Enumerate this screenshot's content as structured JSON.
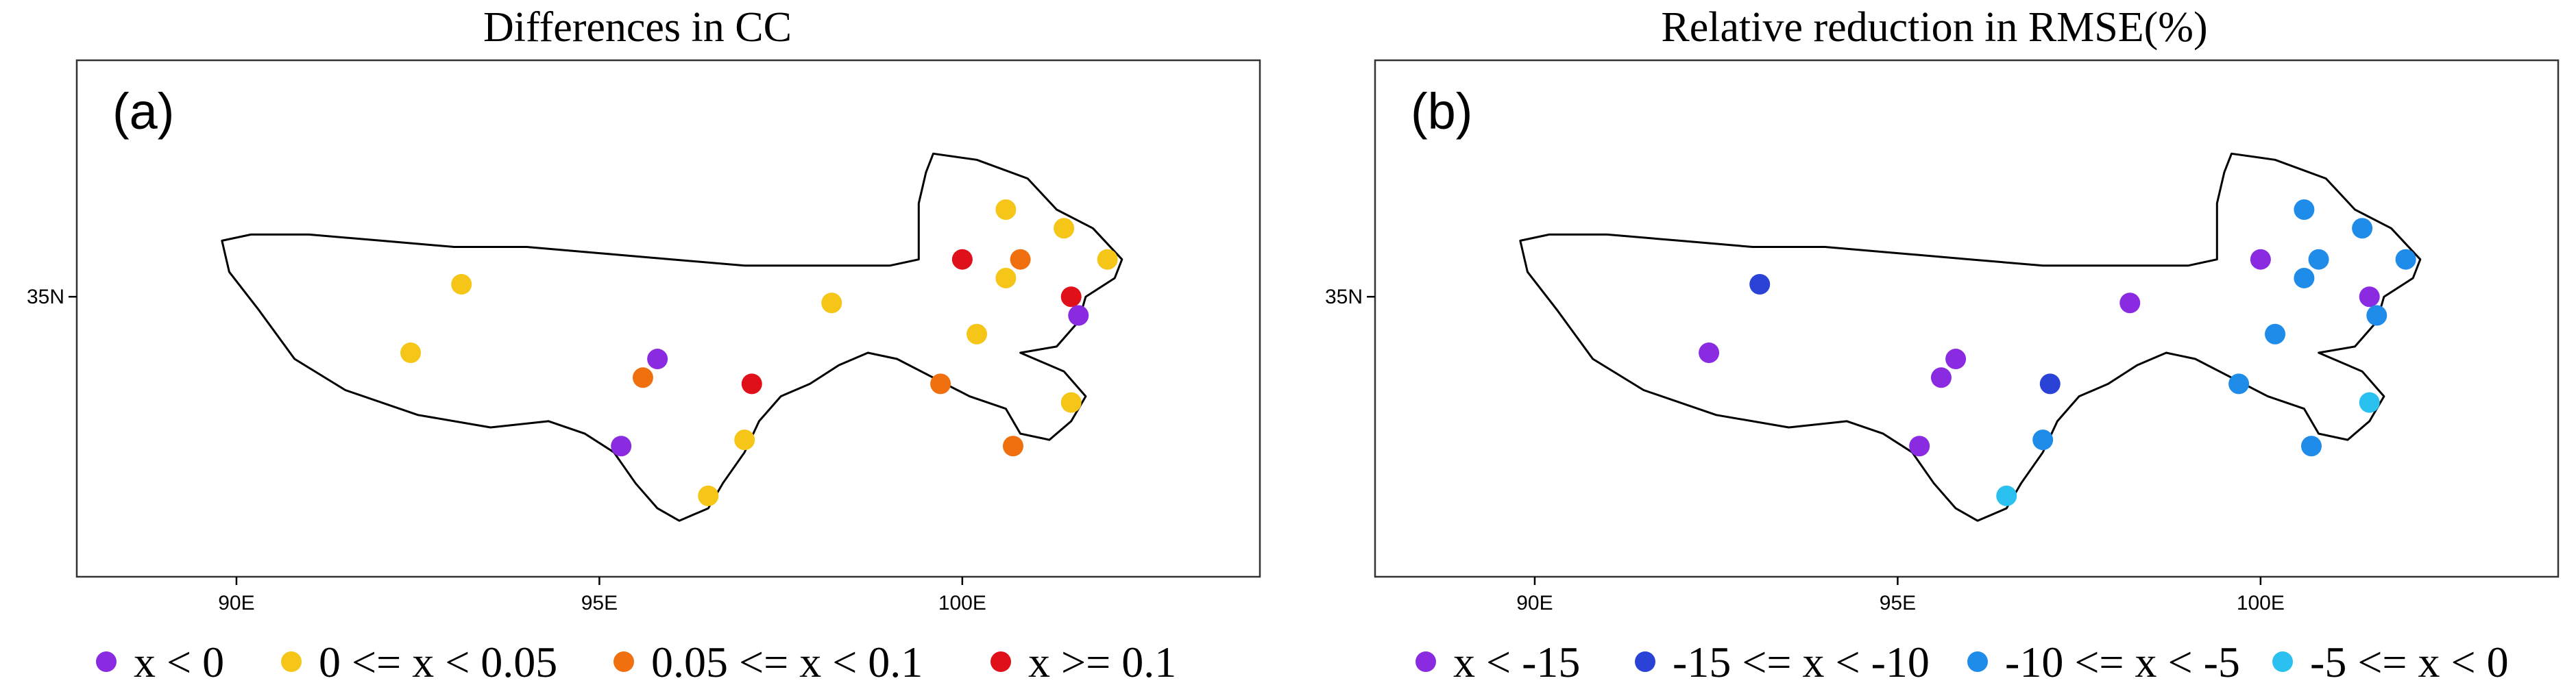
{
  "chart_data": [
    {
      "type": "scatter",
      "panel_label": "(a)",
      "title": "Differences in CC",
      "xticks": [
        {
          "value": 90,
          "label": "90E"
        },
        {
          "value": 95,
          "label": "95E"
        },
        {
          "value": 100,
          "label": "100E"
        }
      ],
      "yticks": [
        {
          "value": 35,
          "label": "35N"
        }
      ],
      "xlim": [
        87.8,
        104.1
      ],
      "ylim": [
        30.5,
        38.8
      ],
      "legend_position": "bottom",
      "categories": [
        {
          "key": "c1",
          "label": "x < 0",
          "color": "#8a2be2"
        },
        {
          "key": "c2",
          "label": "0 <= x < 0.05",
          "color": "#f5c518"
        },
        {
          "key": "c3",
          "label": "0.05 <= x < 0.1",
          "color": "#f07010"
        },
        {
          "key": "c4",
          "label": "x >= 0.1",
          "color": "#e0101a"
        }
      ],
      "points": [
        {
          "lon": 93.1,
          "lat": 35.2,
          "cat": "c2"
        },
        {
          "lon": 92.4,
          "lat": 34.1,
          "cat": "c2"
        },
        {
          "lon": 95.8,
          "lat": 34.0,
          "cat": "c1"
        },
        {
          "lon": 95.6,
          "lat": 33.7,
          "cat": "c3"
        },
        {
          "lon": 95.3,
          "lat": 32.6,
          "cat": "c1"
        },
        {
          "lon": 97.1,
          "lat": 33.6,
          "cat": "c4"
        },
        {
          "lon": 97.0,
          "lat": 32.7,
          "cat": "c2"
        },
        {
          "lon": 96.5,
          "lat": 31.8,
          "cat": "c2"
        },
        {
          "lon": 98.2,
          "lat": 34.9,
          "cat": "c2"
        },
        {
          "lon": 99.7,
          "lat": 33.6,
          "cat": "c3"
        },
        {
          "lon": 100.2,
          "lat": 34.4,
          "cat": "c2"
        },
        {
          "lon": 100.0,
          "lat": 35.6,
          "cat": "c4"
        },
        {
          "lon": 100.6,
          "lat": 36.4,
          "cat": "c2"
        },
        {
          "lon": 100.8,
          "lat": 35.6,
          "cat": "c3"
        },
        {
          "lon": 100.6,
          "lat": 35.3,
          "cat": "c2"
        },
        {
          "lon": 101.4,
          "lat": 36.1,
          "cat": "c2"
        },
        {
          "lon": 101.5,
          "lat": 35.0,
          "cat": "c4"
        },
        {
          "lon": 101.6,
          "lat": 34.7,
          "cat": "c1"
        },
        {
          "lon": 102.0,
          "lat": 35.6,
          "cat": "c2"
        },
        {
          "lon": 101.5,
          "lat": 33.3,
          "cat": "c2"
        },
        {
          "lon": 100.7,
          "lat": 32.6,
          "cat": "c3"
        }
      ]
    },
    {
      "type": "scatter",
      "panel_label": "(b)",
      "title": "Relative reduction in RMSE(%)",
      "xticks": [
        {
          "value": 90,
          "label": "90E"
        },
        {
          "value": 95,
          "label": "95E"
        },
        {
          "value": 100,
          "label": "100E"
        }
      ],
      "yticks": [
        {
          "value": 35,
          "label": "35N"
        }
      ],
      "xlim": [
        87.8,
        104.1
      ],
      "ylim": [
        30.5,
        38.8
      ],
      "legend_position": "bottom",
      "categories": [
        {
          "key": "c1",
          "label": "x < -15",
          "color": "#8a2be2"
        },
        {
          "key": "c2",
          "label": "-15 <= x < -10",
          "color": "#2a43d6"
        },
        {
          "key": "c3",
          "label": "-10 <= x < -5",
          "color": "#1e8ce8"
        },
        {
          "key": "c4",
          "label": "-5 <= x < 0",
          "color": "#2ac0f0"
        }
      ],
      "points": [
        {
          "lon": 93.1,
          "lat": 35.2,
          "cat": "c2"
        },
        {
          "lon": 92.4,
          "lat": 34.1,
          "cat": "c1"
        },
        {
          "lon": 95.8,
          "lat": 34.0,
          "cat": "c1"
        },
        {
          "lon": 95.6,
          "lat": 33.7,
          "cat": "c1"
        },
        {
          "lon": 95.3,
          "lat": 32.6,
          "cat": "c1"
        },
        {
          "lon": 97.1,
          "lat": 33.6,
          "cat": "c2"
        },
        {
          "lon": 97.0,
          "lat": 32.7,
          "cat": "c3"
        },
        {
          "lon": 96.5,
          "lat": 31.8,
          "cat": "c4"
        },
        {
          "lon": 98.2,
          "lat": 34.9,
          "cat": "c1"
        },
        {
          "lon": 99.7,
          "lat": 33.6,
          "cat": "c3"
        },
        {
          "lon": 100.2,
          "lat": 34.4,
          "cat": "c3"
        },
        {
          "lon": 100.0,
          "lat": 35.6,
          "cat": "c1"
        },
        {
          "lon": 100.6,
          "lat": 36.4,
          "cat": "c3"
        },
        {
          "lon": 100.8,
          "lat": 35.6,
          "cat": "c3"
        },
        {
          "lon": 100.6,
          "lat": 35.3,
          "cat": "c3"
        },
        {
          "lon": 101.4,
          "lat": 36.1,
          "cat": "c3"
        },
        {
          "lon": 101.5,
          "lat": 35.0,
          "cat": "c1"
        },
        {
          "lon": 101.6,
          "lat": 34.7,
          "cat": "c3"
        },
        {
          "lon": 102.0,
          "lat": 35.6,
          "cat": "c3"
        },
        {
          "lon": 101.5,
          "lat": 33.3,
          "cat": "c4"
        },
        {
          "lon": 100.7,
          "lat": 32.6,
          "cat": "c3"
        }
      ]
    }
  ]
}
